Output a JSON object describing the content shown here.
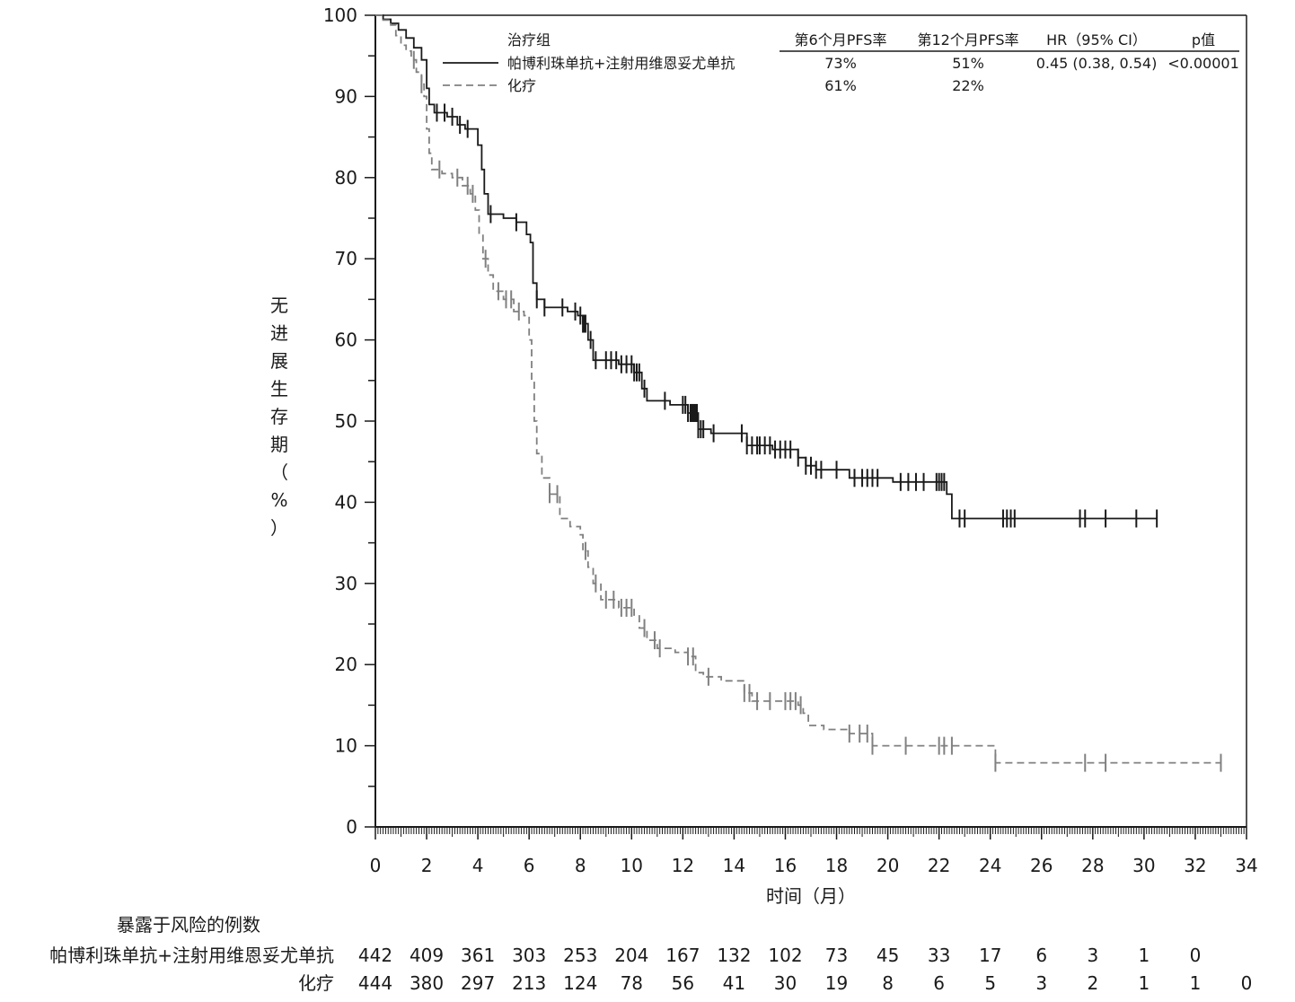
{
  "chart_data": {
    "type": "line",
    "subtype": "kaplan-meier",
    "title": "",
    "ylabel": "无进展生存期（%）",
    "xlabel": "时间（月）",
    "xlim": [
      0,
      34
    ],
    "ylim": [
      0,
      100
    ],
    "x_ticks": [
      0,
      2,
      4,
      6,
      8,
      10,
      12,
      14,
      16,
      18,
      20,
      22,
      24,
      26,
      28,
      30,
      32,
      34
    ],
    "y_ticks": [
      0,
      10,
      20,
      30,
      40,
      50,
      60,
      70,
      80,
      90,
      100
    ],
    "grid": false,
    "legend_position": "top-right",
    "legend": {
      "header": [
        "治疗组",
        "第6个月PFS率",
        "第12个月PFS率",
        "HR（95% CI）",
        "p值"
      ],
      "rows": [
        {
          "name": "帕博利珠单抗+注射用维恩妥尤单抗",
          "pfs6": "73%",
          "pfs12": "51%",
          "hr": "0.45 (0.38, 0.54)",
          "p": "<0.00001"
        },
        {
          "name": "化疗",
          "pfs6": "61%",
          "pfs12": "22%",
          "hr": "",
          "p": ""
        }
      ]
    },
    "series": [
      {
        "name": "帕博利珠单抗+注射用维恩妥尤单抗",
        "line_style": "solid",
        "color": "#1a1a1a",
        "points": [
          [
            0,
            100
          ],
          [
            0.3,
            99.5
          ],
          [
            0.6,
            99
          ],
          [
            0.9,
            98.2
          ],
          [
            1.2,
            97.2
          ],
          [
            1.5,
            96
          ],
          [
            1.8,
            94.5
          ],
          [
            2.0,
            91
          ],
          [
            2.1,
            89
          ],
          [
            2.3,
            88
          ],
          [
            2.8,
            87.5
          ],
          [
            3.2,
            86.5
          ],
          [
            3.5,
            86
          ],
          [
            3.9,
            86
          ],
          [
            4.0,
            84
          ],
          [
            4.15,
            81
          ],
          [
            4.25,
            78
          ],
          [
            4.4,
            75.5
          ],
          [
            5.0,
            75
          ],
          [
            5.5,
            74.5
          ],
          [
            5.9,
            73
          ],
          [
            6.05,
            72
          ],
          [
            6.15,
            67
          ],
          [
            6.3,
            65
          ],
          [
            6.6,
            64
          ],
          [
            7.5,
            63.5
          ],
          [
            7.9,
            63
          ],
          [
            8.1,
            62
          ],
          [
            8.3,
            60
          ],
          [
            8.5,
            57.5
          ],
          [
            9.5,
            57
          ],
          [
            10.1,
            56
          ],
          [
            10.4,
            54
          ],
          [
            10.6,
            52.5
          ],
          [
            11.5,
            52
          ],
          [
            12.2,
            51
          ],
          [
            12.6,
            49
          ],
          [
            13.1,
            48.5
          ],
          [
            14.5,
            47
          ],
          [
            15.5,
            46.5
          ],
          [
            16.5,
            45.5
          ],
          [
            16.8,
            44.5
          ],
          [
            17.2,
            44
          ],
          [
            18.5,
            43
          ],
          [
            20.2,
            42.5
          ],
          [
            21.2,
            42.5
          ],
          [
            22.3,
            41
          ],
          [
            22.5,
            38
          ],
          [
            30.5,
            38
          ]
        ],
        "censor_times": [
          2.4,
          2.7,
          3.0,
          3.3,
          3.6,
          4.5,
          5.5,
          6.3,
          6.6,
          7.3,
          7.8,
          8.0,
          8.1,
          8.15,
          8.2,
          8.4,
          8.6,
          9.0,
          9.2,
          9.4,
          9.6,
          9.8,
          10.0,
          10.1,
          10.2,
          10.3,
          10.5,
          11.3,
          12.0,
          12.1,
          12.2,
          12.3,
          12.35,
          12.4,
          12.45,
          12.5,
          12.55,
          12.6,
          12.7,
          12.8,
          13.2,
          14.3,
          14.5,
          14.7,
          14.9,
          15.0,
          15.2,
          15.4,
          15.6,
          15.8,
          16.0,
          16.2,
          16.5,
          16.8,
          17.0,
          17.2,
          17.4,
          18.0,
          18.7,
          19.0,
          19.2,
          19.4,
          19.6,
          20.5,
          20.8,
          21.1,
          21.4,
          21.9,
          22.0,
          22.1,
          22.2,
          22.8,
          23.0,
          24.5,
          24.65,
          24.8,
          24.95,
          27.5,
          27.7,
          28.5,
          29.7,
          30.5
        ]
      },
      {
        "name": "化疗",
        "line_style": "dashed",
        "color": "#808080",
        "points": [
          [
            0,
            100
          ],
          [
            0.3,
            99.4
          ],
          [
            0.6,
            98.8
          ],
          [
            0.8,
            97.5
          ],
          [
            1.0,
            96.3
          ],
          [
            1.2,
            95.6
          ],
          [
            1.4,
            95
          ],
          [
            1.5,
            94.5
          ],
          [
            1.6,
            93
          ],
          [
            1.8,
            91.5
          ],
          [
            1.9,
            90
          ],
          [
            2.0,
            86
          ],
          [
            2.1,
            83
          ],
          [
            2.2,
            81
          ],
          [
            2.6,
            80.5
          ],
          [
            3.0,
            80
          ],
          [
            3.4,
            79
          ],
          [
            3.7,
            78
          ],
          [
            3.9,
            76
          ],
          [
            4.05,
            73
          ],
          [
            4.2,
            70
          ],
          [
            4.4,
            68
          ],
          [
            4.6,
            66
          ],
          [
            5.0,
            65
          ],
          [
            5.4,
            63.5
          ],
          [
            5.8,
            63
          ],
          [
            6.0,
            60
          ],
          [
            6.1,
            55
          ],
          [
            6.2,
            50
          ],
          [
            6.3,
            46
          ],
          [
            6.5,
            43
          ],
          [
            6.8,
            41
          ],
          [
            7.2,
            38
          ],
          [
            7.6,
            37
          ],
          [
            8.0,
            36
          ],
          [
            8.1,
            34
          ],
          [
            8.3,
            32
          ],
          [
            8.5,
            30
          ],
          [
            8.8,
            28
          ],
          [
            9.5,
            27
          ],
          [
            10.1,
            26
          ],
          [
            10.3,
            24.5
          ],
          [
            10.6,
            23
          ],
          [
            11.0,
            22
          ],
          [
            11.7,
            21.5
          ],
          [
            12.2,
            21
          ],
          [
            12.5,
            19
          ],
          [
            12.8,
            18.5
          ],
          [
            13.5,
            18
          ],
          [
            14.4,
            16.5
          ],
          [
            14.7,
            15.5
          ],
          [
            16.5,
            15
          ],
          [
            16.7,
            14
          ],
          [
            16.9,
            12.5
          ],
          [
            17.5,
            12
          ],
          [
            18.5,
            11.5
          ],
          [
            19.4,
            10
          ],
          [
            21.7,
            10
          ],
          [
            24.2,
            7.9
          ],
          [
            33,
            7.9
          ]
        ],
        "censor_times": [
          1.5,
          1.8,
          2.5,
          3.2,
          3.6,
          3.8,
          4.3,
          4.8,
          5.1,
          5.3,
          5.6,
          6.8,
          7.1,
          8.2,
          8.6,
          9.0,
          9.3,
          9.6,
          9.8,
          10.0,
          10.5,
          10.9,
          11.1,
          12.2,
          12.4,
          13.0,
          14.4,
          14.6,
          14.9,
          15.4,
          16.0,
          16.2,
          16.4,
          16.6,
          18.5,
          18.9,
          19.2,
          19.4,
          20.7,
          22.0,
          22.2,
          22.5,
          24.2,
          27.7,
          28.5,
          33.0
        ]
      }
    ],
    "risk_table": {
      "title": "暴露于风险的例数",
      "rows": [
        {
          "label": "帕博利珠单抗+注射用维恩妥尤单抗",
          "values": [
            "442",
            "409",
            "361",
            "303",
            "253",
            "204",
            "167",
            "132",
            "102",
            "73",
            "45",
            "33",
            "17",
            "6",
            "3",
            "1",
            "0"
          ]
        },
        {
          "label": "化疗",
          "values": [
            "444",
            "380",
            "297",
            "213",
            "124",
            "78",
            "56",
            "41",
            "30",
            "19",
            "8",
            "6",
            "5",
            "3",
            "2",
            "1",
            "1",
            "0"
          ]
        }
      ]
    }
  },
  "colors": {
    "solid_series": "#1a1a1a",
    "dashed_series": "#808080",
    "axis": "#1a1a1a"
  }
}
